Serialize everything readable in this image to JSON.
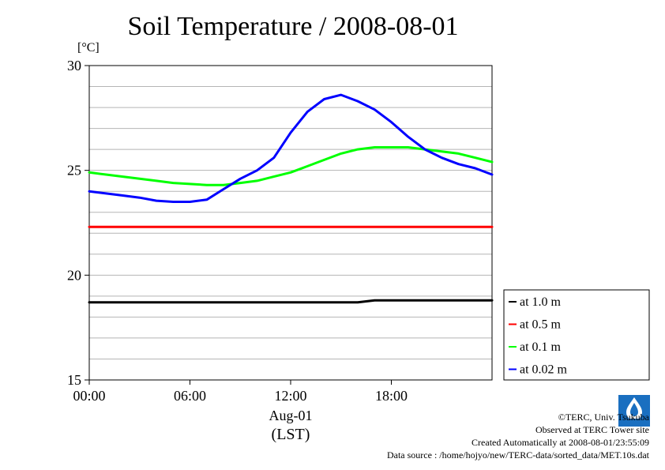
{
  "chart_data": {
    "type": "line",
    "title": "Soil Temperature / 2008-08-01",
    "ylabel": "[°C]",
    "xlabel_date": "Aug-01",
    "xlabel_zone": "(LST)",
    "ylim": [
      15,
      30
    ],
    "xlim_hours": [
      0,
      24
    ],
    "y_ticks": [
      "15",
      "20",
      "25",
      "30"
    ],
    "x_ticks": [
      "00:00",
      "06:00",
      "12:00",
      "18:00"
    ],
    "grid": true,
    "legend_position": "right",
    "x_hours": [
      0,
      1,
      2,
      3,
      4,
      5,
      6,
      7,
      8,
      9,
      10,
      11,
      12,
      13,
      14,
      15,
      16,
      17,
      18,
      19,
      20,
      21,
      22,
      23,
      24
    ],
    "series": [
      {
        "name": "at 1.0 m",
        "color": "#000000",
        "values": [
          18.7,
          18.7,
          18.7,
          18.7,
          18.7,
          18.7,
          18.7,
          18.7,
          18.7,
          18.7,
          18.7,
          18.7,
          18.7,
          18.7,
          18.7,
          18.7,
          18.7,
          18.8,
          18.8,
          18.8,
          18.8,
          18.8,
          18.8,
          18.8,
          18.8
        ]
      },
      {
        "name": "at 0.5 m",
        "color": "#ff0000",
        "values": [
          22.3,
          22.3,
          22.3,
          22.3,
          22.3,
          22.3,
          22.3,
          22.3,
          22.3,
          22.3,
          22.3,
          22.3,
          22.3,
          22.3,
          22.3,
          22.3,
          22.3,
          22.3,
          22.3,
          22.3,
          22.3,
          22.3,
          22.3,
          22.3,
          22.3
        ]
      },
      {
        "name": "at 0.1 m",
        "color": "#00ff00",
        "values": [
          24.9,
          24.8,
          24.7,
          24.6,
          24.5,
          24.4,
          24.35,
          24.3,
          24.3,
          24.4,
          24.5,
          24.7,
          24.9,
          25.2,
          25.5,
          25.8,
          26.0,
          26.1,
          26.1,
          26.1,
          26.0,
          25.9,
          25.8,
          25.6,
          25.4
        ]
      },
      {
        "name": "at 0.02 m",
        "color": "#0000ff",
        "values": [
          24.0,
          23.9,
          23.8,
          23.7,
          23.55,
          23.5,
          23.5,
          23.6,
          24.1,
          24.6,
          25.0,
          25.6,
          26.8,
          27.8,
          28.4,
          28.6,
          28.3,
          27.9,
          27.3,
          26.6,
          26.0,
          25.6,
          25.3,
          25.1,
          24.8
        ]
      }
    ]
  },
  "footer": {
    "copyright": "©TERC, Univ. Tsukuba",
    "site": "Observed at TERC Tower site",
    "created": "Created Automatically at 2008-08-01/23:55:09",
    "source": "Data source : /home/hojyo/new/TERC-data/sorted_data/MET.10s.dat"
  },
  "logo_text": "TERC"
}
